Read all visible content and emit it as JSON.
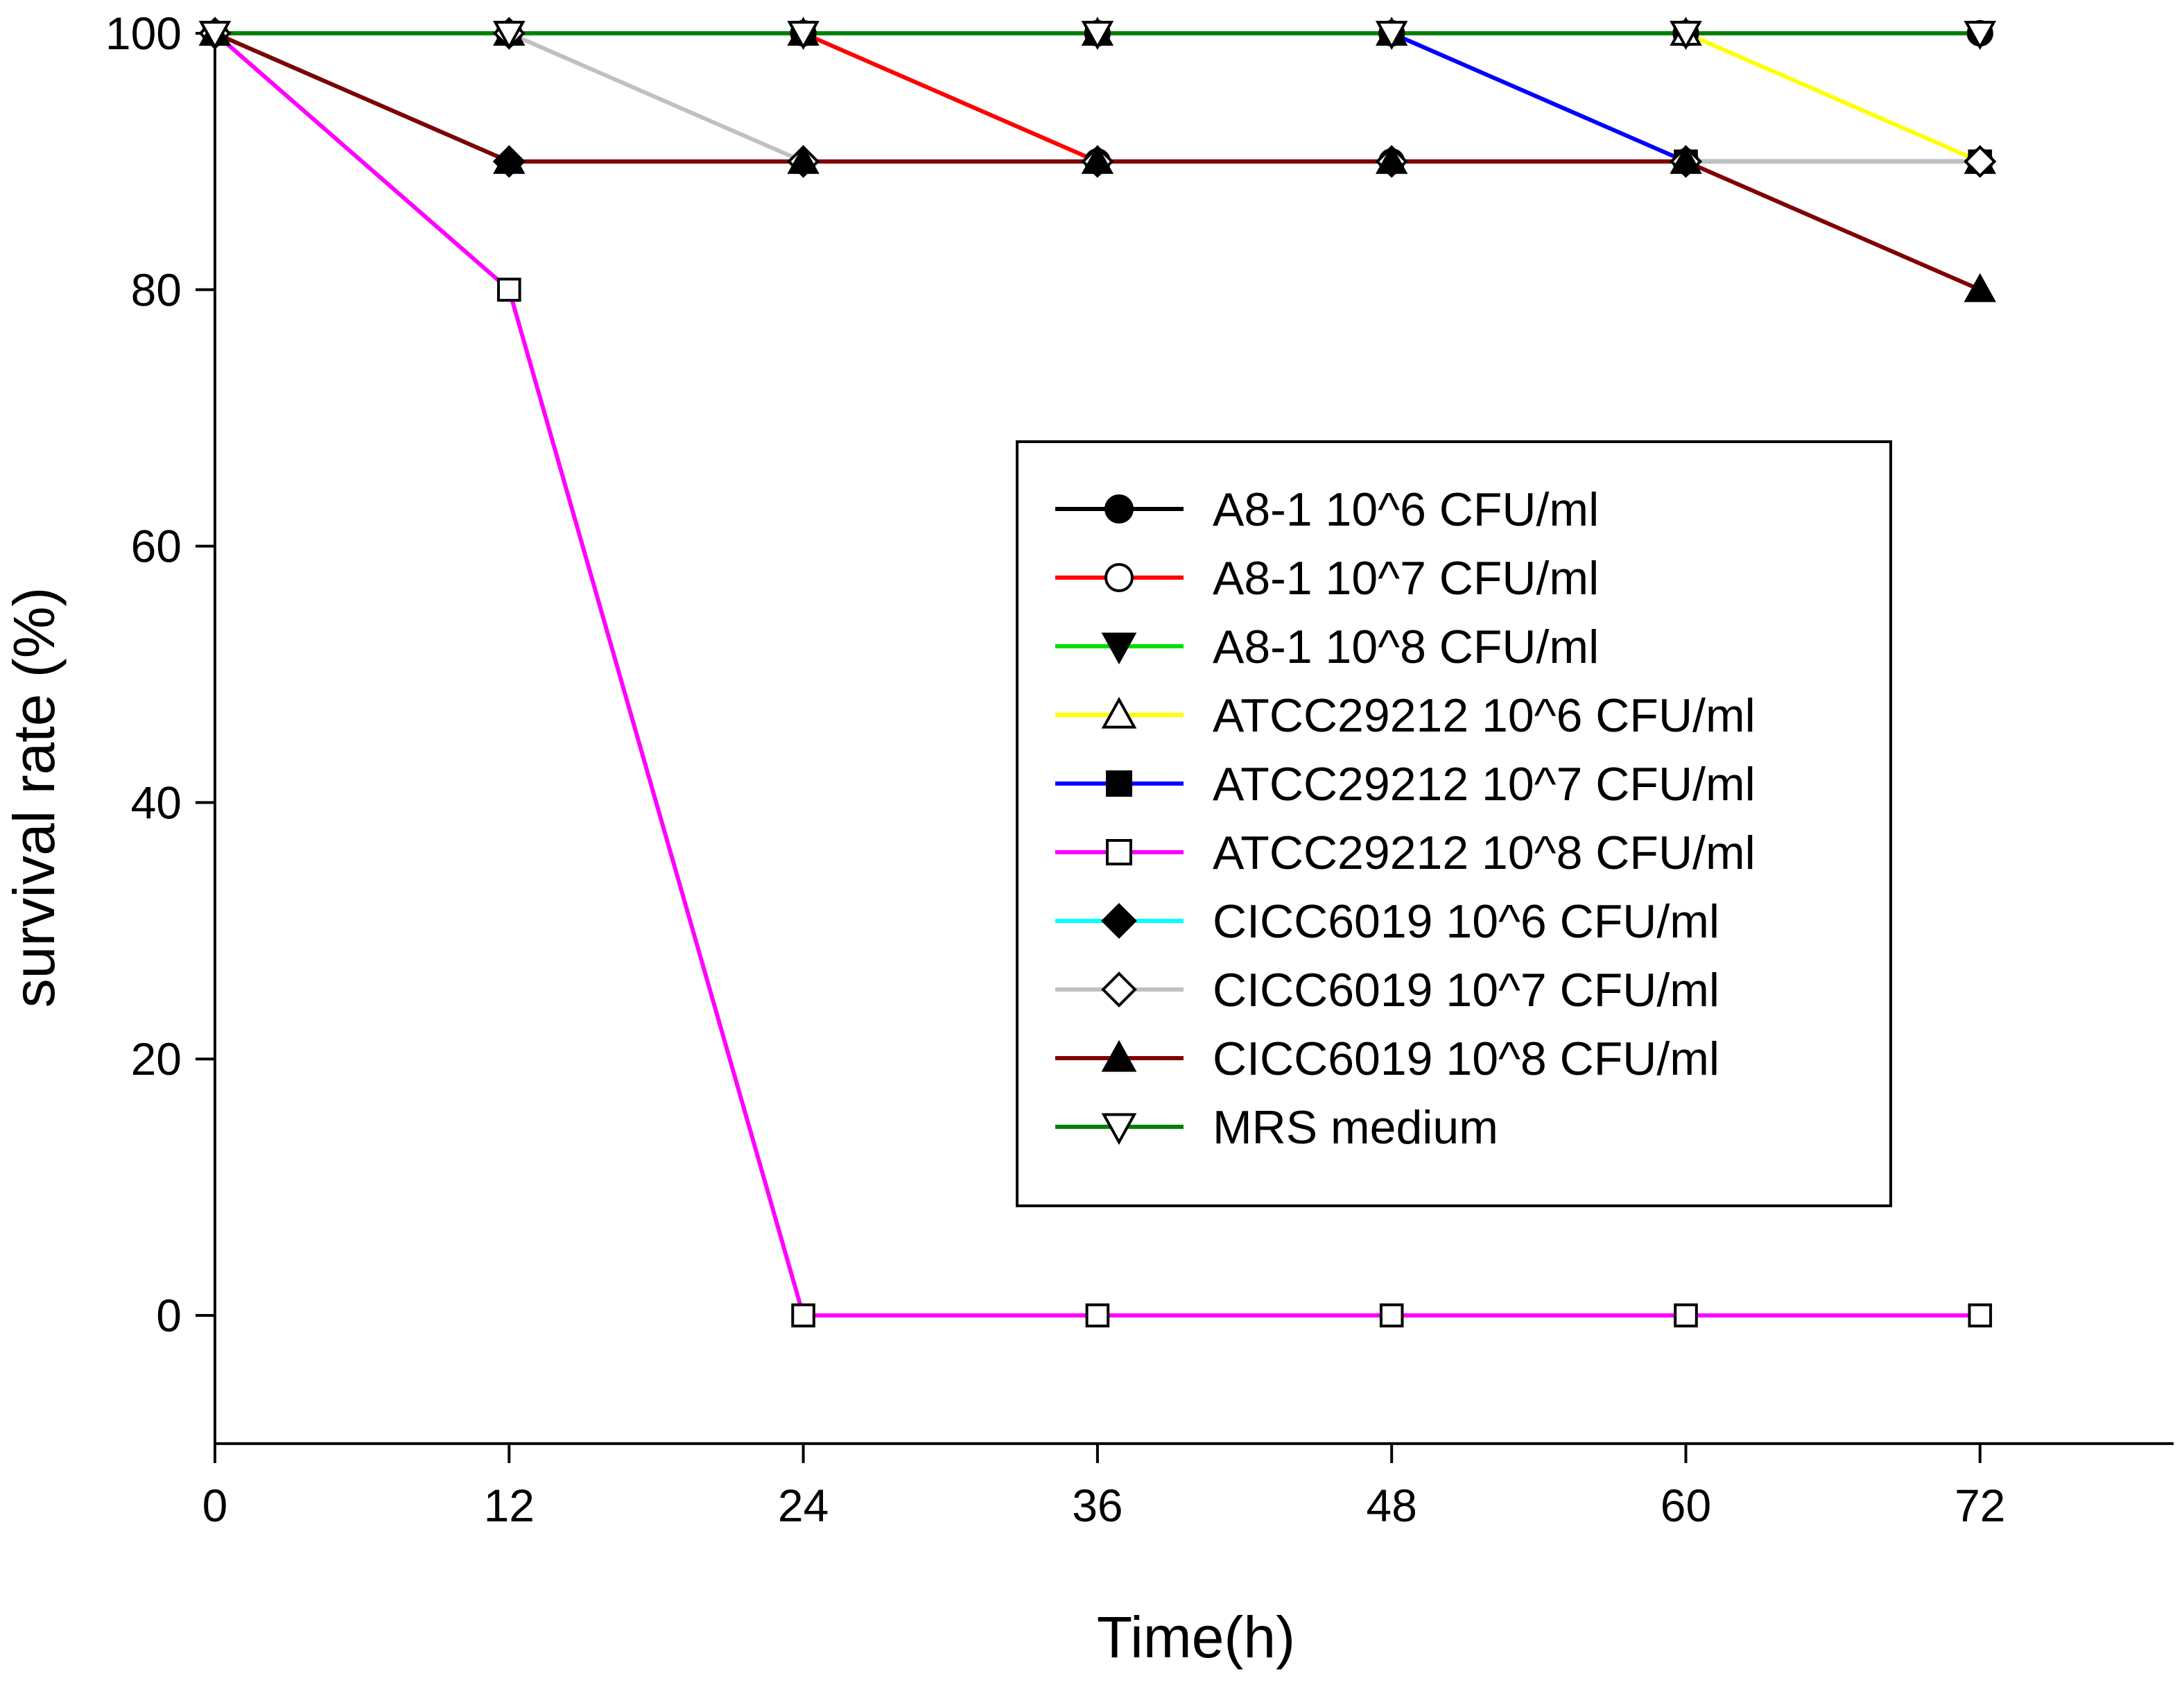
{
  "chart_data": {
    "type": "line",
    "title": "",
    "xlabel": "Time(h)",
    "ylabel": "survival rate (%)",
    "x": [
      0,
      12,
      24,
      36,
      48,
      60,
      72
    ],
    "xlim": [
      0,
      80
    ],
    "ylim": [
      -10,
      100
    ],
    "xticks": [
      0,
      12,
      24,
      36,
      48,
      60,
      72
    ],
    "yticks": [
      0,
      20,
      40,
      60,
      80,
      100
    ],
    "grid": false,
    "legend_position": "center-right",
    "series": [
      {
        "name": "A8-1 10^6 CFU/ml",
        "color": "#000000",
        "marker": "circle-filled",
        "values": [
          100,
          100,
          100,
          100,
          100,
          100,
          100
        ]
      },
      {
        "name": "A8-1 10^7 CFU/ml",
        "color": "#ff0000",
        "marker": "circle-open",
        "values": [
          100,
          100,
          100,
          90,
          90,
          90,
          90
        ]
      },
      {
        "name": "A8-1 10^8 CFU/ml",
        "color": "#00dd00",
        "marker": "triangle-down-filled",
        "values": [
          100,
          100,
          100,
          100,
          100,
          100,
          100
        ]
      },
      {
        "name": "ATCC29212 10^6 CFU/ml",
        "color": "#ffff00",
        "marker": "triangle-up-open",
        "values": [
          100,
          100,
          100,
          100,
          100,
          100,
          90
        ]
      },
      {
        "name": "ATCC29212 10^7 CFU/ml",
        "color": "#0000ff",
        "marker": "square-filled",
        "values": [
          100,
          100,
          100,
          100,
          100,
          90,
          90
        ]
      },
      {
        "name": "ATCC29212 10^8 CFU/ml",
        "color": "#ff00ff",
        "marker": "square-open",
        "values": [
          100,
          80,
          0,
          0,
          0,
          0,
          0
        ]
      },
      {
        "name": "CICC6019 10^6 CFU/ml",
        "color": "#00ffff",
        "marker": "diamond-filled",
        "values": [
          100,
          90,
          90,
          90,
          90,
          90,
          90
        ]
      },
      {
        "name": "CICC6019 10^7 CFU/ml",
        "color": "#c0c0c0",
        "marker": "diamond-open",
        "values": [
          100,
          100,
          90,
          90,
          90,
          90,
          90
        ]
      },
      {
        "name": "CICC6019 10^8 CFU/ml",
        "color": "#800000",
        "marker": "triangle-up-filled",
        "values": [
          100,
          90,
          90,
          90,
          90,
          90,
          80
        ]
      },
      {
        "name": "MRS medium",
        "color": "#008000",
        "marker": "triangle-down-open",
        "values": [
          100,
          100,
          100,
          100,
          100,
          100,
          100
        ]
      }
    ]
  }
}
